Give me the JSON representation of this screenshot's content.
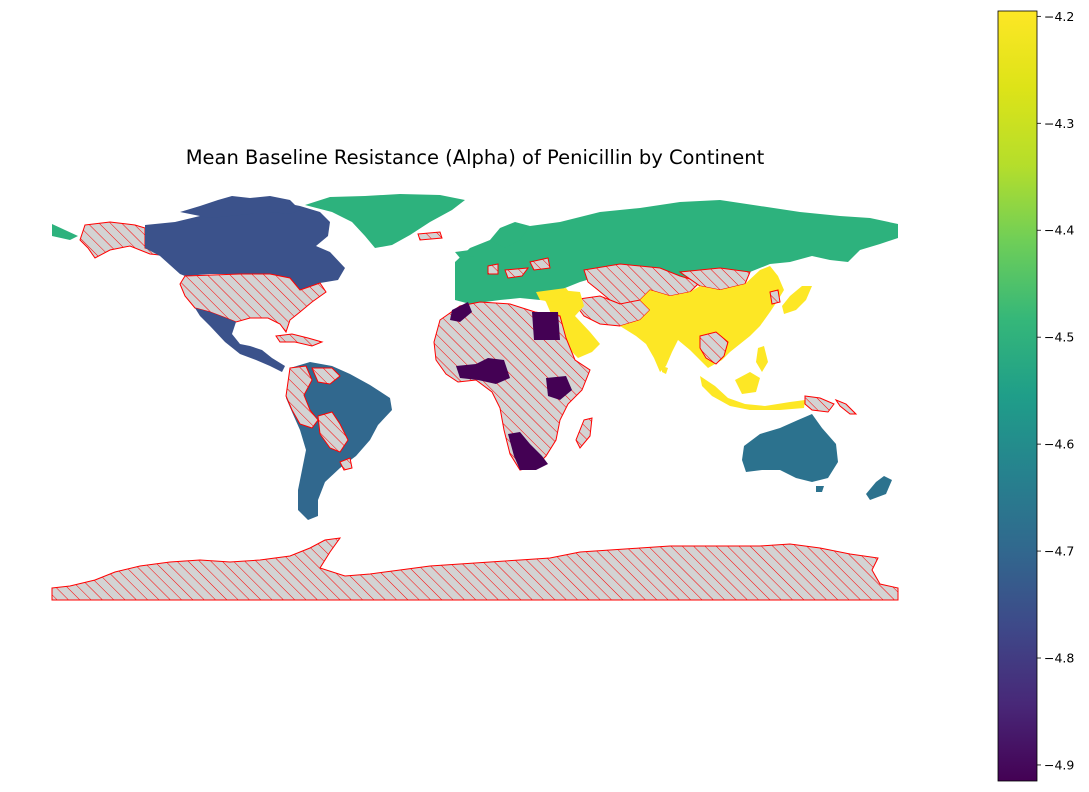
{
  "title": "Mean Baseline Resistance (Alpha) of Penicillin by Continent",
  "colormap": "viridis",
  "colors": {
    "missing_fill": "#d3d3d3",
    "missing_edge": "#ff0000",
    "hatch": "#ff0000"
  },
  "colorbar": {
    "min": -4.915,
    "max": -4.195,
    "ticks": [
      -4.2,
      -4.3,
      -4.4,
      -4.5,
      -4.6,
      -4.7,
      -4.8,
      -4.9
    ],
    "tick_labels": [
      "−4.2",
      "−4.3",
      "−4.4",
      "−4.5",
      "−4.6",
      "−4.7",
      "−4.8",
      "−4.9"
    ]
  },
  "legend": {
    "no_data": "hatched"
  },
  "continent_values": {
    "Asia": -4.2,
    "Europe": -4.48,
    "Oceania": -4.65,
    "South America": -4.73,
    "North America": -4.78,
    "Africa": -4.91
  },
  "map_colors": {
    "Asia": "#fde725",
    "Europe": "#2db27d",
    "Oceania": "#2c728e",
    "South America": "#31688e",
    "North America": "#3b528b",
    "Africa": "#440154"
  }
}
